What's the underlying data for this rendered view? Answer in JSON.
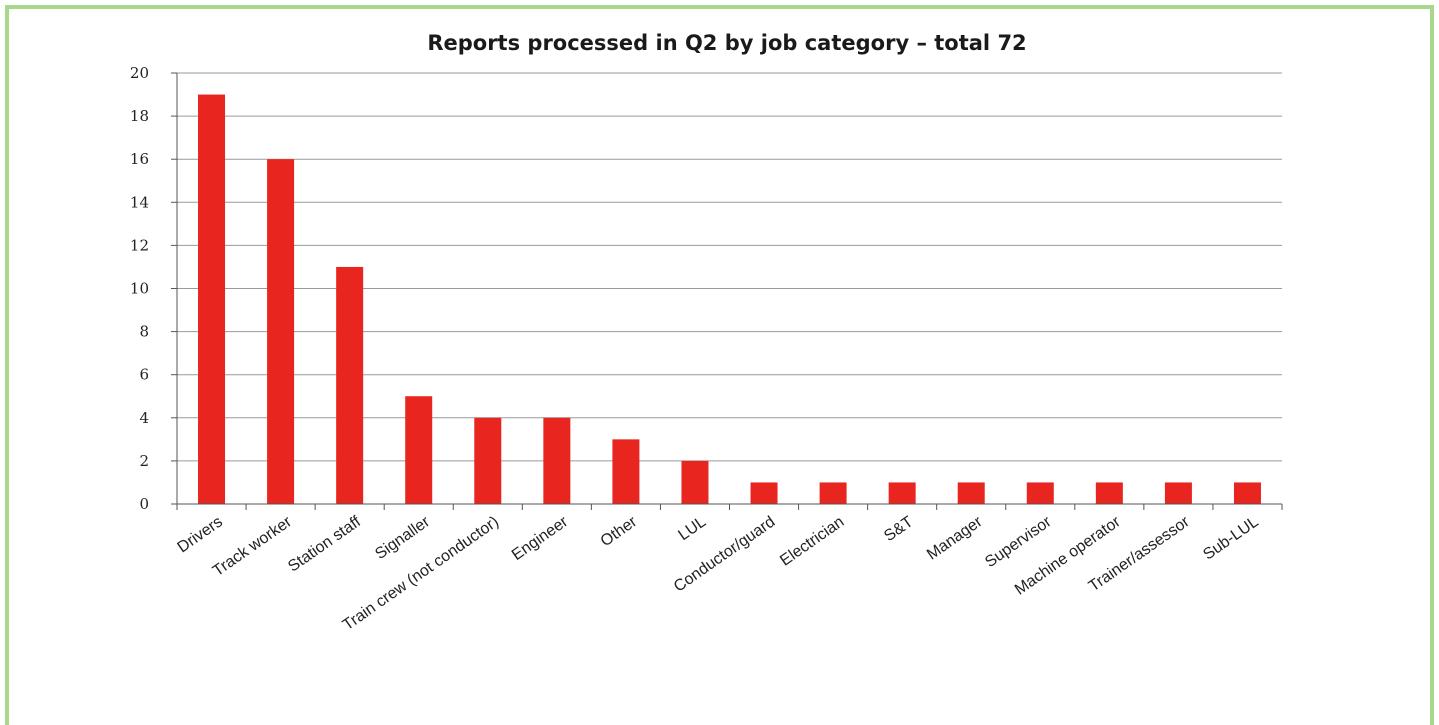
{
  "chart_data": {
    "type": "bar",
    "title": "Reports processed in Q2 by job category – total 72",
    "xlabel": "",
    "ylabel": "",
    "categories": [
      "Drivers",
      "Track worker",
      "Station staff",
      "Signaller",
      "Train crew (not conductor)",
      "Engineer",
      "Other",
      "LUL",
      "Conductor/guard",
      "Electrician",
      "S&T",
      "Manager",
      "Supervisor",
      "Machine operator",
      "Trainer/assessor",
      "Sub-LUL"
    ],
    "values": [
      19,
      16,
      11,
      5,
      4,
      4,
      3,
      2,
      1,
      1,
      1,
      1,
      1,
      1,
      1,
      1
    ],
    "ylim": [
      0,
      20
    ],
    "yticks": [
      0,
      2,
      4,
      6,
      8,
      10,
      12,
      14,
      16,
      18,
      20
    ],
    "grid": true,
    "bar_color": "#e8251f",
    "border_color": "#a8d88c"
  }
}
